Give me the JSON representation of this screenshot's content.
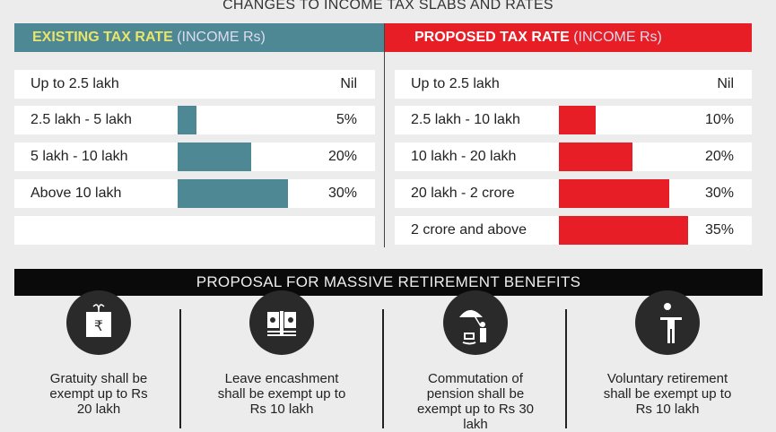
{
  "title": "CHANGES TO INCOME TAX SLABS AND RATES",
  "existing": {
    "label_bold": "EXISTING TAX RATE",
    "label_rest": " (INCOME Rs)",
    "color": "#4e8895",
    "rows": [
      {
        "slab": "Up to 2.5 lakh",
        "rate": "Nil",
        "value": 0
      },
      {
        "slab": "2.5 lakh - 5 lakh",
        "rate": "5%",
        "value": 5
      },
      {
        "slab": "5 lakh - 10  lakh",
        "rate": "20%",
        "value": 20
      },
      {
        "slab": "Above 10 lakh",
        "rate": "30%",
        "value": 30
      }
    ]
  },
  "proposed": {
    "label_bold": "PROPOSED TAX RATE",
    "label_rest": " (INCOME Rs)",
    "color": "#e81e26",
    "rows": [
      {
        "slab": "Up to 2.5 lakh",
        "rate": "Nil",
        "value": 0
      },
      {
        "slab": "2.5 lakh - 10 lakh",
        "rate": "10%",
        "value": 10
      },
      {
        "slab": "10  lakh - 20 lakh",
        "rate": "20%",
        "value": 20
      },
      {
        "slab": "20 lakh - 2 crore",
        "rate": "30%",
        "value": 30
      },
      {
        "slab": "2 crore and above",
        "rate": "35%",
        "value": 35
      }
    ]
  },
  "chart_data": {
    "type": "bar",
    "title": "CHANGES TO INCOME TAX SLABS AND RATES",
    "series": [
      {
        "name": "EXISTING TAX RATE (INCOME Rs)",
        "categories": [
          "Up to 2.5 lakh",
          "2.5 lakh - 5 lakh",
          "5 lakh - 10  lakh",
          "Above 10 lakh"
        ],
        "values": [
          0,
          5,
          20,
          30
        ]
      },
      {
        "name": "PROPOSED TAX RATE (INCOME Rs)",
        "categories": [
          "Up to 2.5 lakh",
          "2.5 lakh - 10 lakh",
          "10  lakh - 20 lakh",
          "20 lakh - 2 crore",
          "2 crore and above"
        ],
        "values": [
          0,
          10,
          20,
          30,
          35
        ]
      }
    ]
  },
  "benefits": {
    "title": "PROPOSAL FOR MASSIVE RETIREMENT BENEFITS",
    "items": [
      {
        "icon": "rupee-gift-icon",
        "lines": [
          "Gratuity shall be",
          "exempt up to Rs",
          "20 lakh"
        ]
      },
      {
        "icon": "cash-bundle-icon",
        "lines": [
          "Leave encashment",
          "shall be exempt up to",
          "Rs 10 lakh"
        ]
      },
      {
        "icon": "umbrella-pensioner-icon",
        "lines": [
          "Commutation of",
          "pension shall be",
          "exempt up to Rs 30",
          "lakh"
        ]
      },
      {
        "icon": "man-shrug-icon",
        "lines": [
          "Voluntary retirement",
          "shall be exempt up to",
          "Rs 10 lakh"
        ]
      }
    ]
  }
}
